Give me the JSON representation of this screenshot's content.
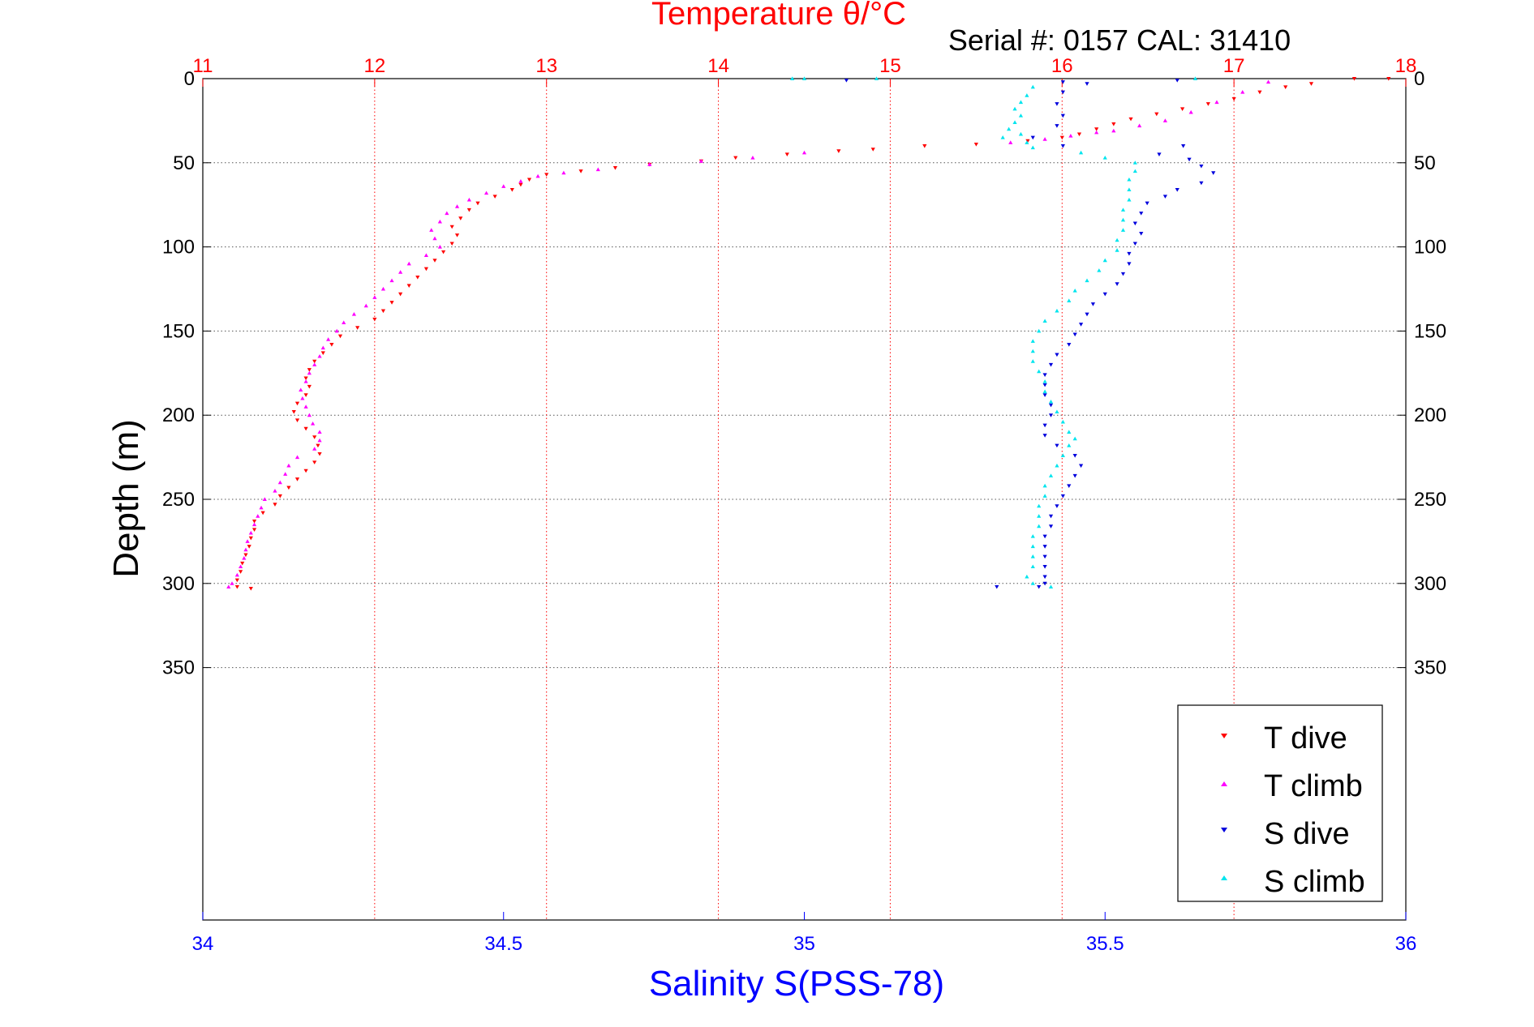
{
  "chart_data": {
    "type": "scatter",
    "title": "Temperature θ/°C",
    "subtitle": "Serial #: 0157  CAL: 31410",
    "xlabel": "Salinity S(PSS-78)",
    "ylabel": "Depth (m)",
    "x_top": {
      "label": "Temperature θ/°C",
      "lim": [
        11,
        18
      ],
      "ticks": [
        "11",
        "12",
        "13",
        "14",
        "15",
        "16",
        "17",
        "18"
      ]
    },
    "x_bottom": {
      "label": "Salinity S(PSS-78)",
      "lim": [
        34,
        36
      ],
      "ticks": [
        "34",
        "34.5",
        "35",
        "35.5",
        "36"
      ]
    },
    "ylim": [
      0,
      500
    ],
    "y_reversed": true,
    "y_ticks": [
      "0",
      "50",
      "100",
      "150",
      "200",
      "250",
      "300",
      "350"
    ],
    "grid": true,
    "legend_position": "bottom-right",
    "colors": {
      "t_dive": "#ff0000",
      "t_climb": "#ff00ff",
      "s_dive": "#0000dd",
      "s_climb": "#00e5ee",
      "grid": "#555555",
      "axis_t": "#ff0000",
      "axis_s": "#0000ff"
    },
    "series": [
      {
        "name": "T dive",
        "axis": "temperature",
        "marker": "triangle-down",
        "color": "#ff0000",
        "points": [
          [
            17.9,
            0
          ],
          [
            17.7,
            0
          ],
          [
            17.45,
            3
          ],
          [
            17.3,
            5
          ],
          [
            17.15,
            8
          ],
          [
            17.0,
            12
          ],
          [
            16.85,
            15
          ],
          [
            16.7,
            18
          ],
          [
            16.55,
            21
          ],
          [
            16.4,
            24
          ],
          [
            16.3,
            27
          ],
          [
            16.2,
            30
          ],
          [
            16.1,
            33
          ],
          [
            16.0,
            35
          ],
          [
            15.8,
            37
          ],
          [
            15.5,
            39
          ],
          [
            15.2,
            40
          ],
          [
            14.9,
            42
          ],
          [
            14.7,
            43
          ],
          [
            14.4,
            45
          ],
          [
            14.1,
            47
          ],
          [
            13.9,
            49
          ],
          [
            13.6,
            51
          ],
          [
            13.4,
            53
          ],
          [
            13.2,
            55
          ],
          [
            13.0,
            57
          ],
          [
            12.9,
            60
          ],
          [
            12.85,
            63
          ],
          [
            12.8,
            66
          ],
          [
            12.7,
            70
          ],
          [
            12.6,
            74
          ],
          [
            12.55,
            78
          ],
          [
            12.5,
            83
          ],
          [
            12.45,
            88
          ],
          [
            12.48,
            93
          ],
          [
            12.45,
            98
          ],
          [
            12.4,
            103
          ],
          [
            12.35,
            108
          ],
          [
            12.3,
            113
          ],
          [
            12.25,
            118
          ],
          [
            12.2,
            123
          ],
          [
            12.15,
            128
          ],
          [
            12.1,
            133
          ],
          [
            12.05,
            138
          ],
          [
            12.0,
            143
          ],
          [
            11.9,
            148
          ],
          [
            11.8,
            153
          ],
          [
            11.75,
            158
          ],
          [
            11.7,
            163
          ],
          [
            11.65,
            168
          ],
          [
            11.62,
            173
          ],
          [
            11.6,
            178
          ],
          [
            11.62,
            183
          ],
          [
            11.6,
            188
          ],
          [
            11.55,
            193
          ],
          [
            11.53,
            198
          ],
          [
            11.55,
            203
          ],
          [
            11.6,
            208
          ],
          [
            11.65,
            213
          ],
          [
            11.67,
            218
          ],
          [
            11.68,
            223
          ],
          [
            11.65,
            228
          ],
          [
            11.6,
            233
          ],
          [
            11.55,
            238
          ],
          [
            11.5,
            243
          ],
          [
            11.45,
            248
          ],
          [
            11.42,
            253
          ],
          [
            11.35,
            258
          ],
          [
            11.3,
            263
          ],
          [
            11.3,
            268
          ],
          [
            11.28,
            273
          ],
          [
            11.27,
            278
          ],
          [
            11.25,
            283
          ],
          [
            11.23,
            288
          ],
          [
            11.22,
            293
          ],
          [
            11.2,
            298
          ],
          [
            11.2,
            302
          ],
          [
            11.28,
            303
          ]
        ]
      },
      {
        "name": "T climb",
        "axis": "temperature",
        "marker": "triangle-up",
        "color": "#ff00ff",
        "points": [
          [
            17.2,
            2
          ],
          [
            17.05,
            8
          ],
          [
            16.9,
            14
          ],
          [
            16.75,
            20
          ],
          [
            16.6,
            25
          ],
          [
            16.45,
            28
          ],
          [
            16.3,
            31
          ],
          [
            16.2,
            32
          ],
          [
            16.05,
            34
          ],
          [
            15.9,
            36
          ],
          [
            15.7,
            38
          ],
          [
            14.5,
            44
          ],
          [
            14.2,
            47
          ],
          [
            13.9,
            49
          ],
          [
            13.6,
            51
          ],
          [
            13.3,
            54
          ],
          [
            13.1,
            56
          ],
          [
            12.95,
            58
          ],
          [
            12.85,
            61
          ],
          [
            12.75,
            64
          ],
          [
            12.65,
            68
          ],
          [
            12.55,
            72
          ],
          [
            12.48,
            76
          ],
          [
            12.42,
            80
          ],
          [
            12.38,
            85
          ],
          [
            12.33,
            90
          ],
          [
            12.35,
            95
          ],
          [
            12.38,
            100
          ],
          [
            12.3,
            105
          ],
          [
            12.2,
            110
          ],
          [
            12.15,
            115
          ],
          [
            12.1,
            120
          ],
          [
            12.05,
            125
          ],
          [
            12.0,
            130
          ],
          [
            11.95,
            135
          ],
          [
            11.88,
            140
          ],
          [
            11.82,
            145
          ],
          [
            11.78,
            150
          ],
          [
            11.73,
            155
          ],
          [
            11.7,
            160
          ],
          [
            11.68,
            165
          ],
          [
            11.65,
            170
          ],
          [
            11.62,
            175
          ],
          [
            11.6,
            180
          ],
          [
            11.57,
            185
          ],
          [
            11.58,
            190
          ],
          [
            11.6,
            195
          ],
          [
            11.62,
            200
          ],
          [
            11.64,
            205
          ],
          [
            11.68,
            210
          ],
          [
            11.68,
            215
          ],
          [
            11.65,
            220
          ],
          [
            11.55,
            225
          ],
          [
            11.5,
            230
          ],
          [
            11.48,
            235
          ],
          [
            11.45,
            240
          ],
          [
            11.42,
            245
          ],
          [
            11.36,
            250
          ],
          [
            11.34,
            255
          ],
          [
            11.32,
            260
          ],
          [
            11.3,
            265
          ],
          [
            11.28,
            270
          ],
          [
            11.26,
            275
          ],
          [
            11.25,
            280
          ],
          [
            11.24,
            285
          ],
          [
            11.22,
            290
          ],
          [
            11.2,
            295
          ],
          [
            11.17,
            300
          ],
          [
            11.15,
            302
          ]
        ]
      },
      {
        "name": "S dive",
        "axis": "salinity",
        "marker": "triangle-down",
        "color": "#0000dd",
        "points": [
          [
            35.07,
            1
          ],
          [
            35.43,
            2
          ],
          [
            35.47,
            3
          ],
          [
            35.62,
            1
          ],
          [
            35.43,
            8
          ],
          [
            35.42,
            15
          ],
          [
            35.43,
            22
          ],
          [
            35.42,
            28
          ],
          [
            35.38,
            35
          ],
          [
            35.43,
            40
          ],
          [
            35.63,
            40
          ],
          [
            35.59,
            45
          ],
          [
            35.64,
            48
          ],
          [
            35.66,
            52
          ],
          [
            35.68,
            56
          ],
          [
            35.66,
            62
          ],
          [
            35.62,
            66
          ],
          [
            35.6,
            70
          ],
          [
            35.57,
            74
          ],
          [
            35.56,
            80
          ],
          [
            35.55,
            86
          ],
          [
            35.56,
            92
          ],
          [
            35.55,
            98
          ],
          [
            35.54,
            104
          ],
          [
            35.54,
            110
          ],
          [
            35.53,
            116
          ],
          [
            35.52,
            122
          ],
          [
            35.5,
            128
          ],
          [
            35.48,
            134
          ],
          [
            35.47,
            140
          ],
          [
            35.46,
            146
          ],
          [
            35.45,
            152
          ],
          [
            35.44,
            158
          ],
          [
            35.42,
            164
          ],
          [
            35.41,
            170
          ],
          [
            35.4,
            176
          ],
          [
            35.4,
            182
          ],
          [
            35.4,
            188
          ],
          [
            35.41,
            194
          ],
          [
            35.41,
            200
          ],
          [
            35.4,
            206
          ],
          [
            35.4,
            212
          ],
          [
            35.42,
            218
          ],
          [
            35.45,
            224
          ],
          [
            35.46,
            230
          ],
          [
            35.45,
            236
          ],
          [
            35.44,
            242
          ],
          [
            35.43,
            248
          ],
          [
            35.42,
            254
          ],
          [
            35.41,
            260
          ],
          [
            35.41,
            266
          ],
          [
            35.4,
            272
          ],
          [
            35.4,
            278
          ],
          [
            35.4,
            284
          ],
          [
            35.4,
            290
          ],
          [
            35.4,
            296
          ],
          [
            35.4,
            300
          ],
          [
            35.39,
            302
          ],
          [
            35.32,
            302
          ]
        ]
      },
      {
        "name": "S climb",
        "axis": "salinity",
        "marker": "triangle-up",
        "color": "#00e5ee",
        "points": [
          [
            34.98,
            0
          ],
          [
            35.0,
            0
          ],
          [
            35.12,
            0
          ],
          [
            35.65,
            0
          ],
          [
            35.38,
            5
          ],
          [
            35.37,
            10
          ],
          [
            35.36,
            14
          ],
          [
            35.35,
            18
          ],
          [
            35.36,
            22
          ],
          [
            35.35,
            26
          ],
          [
            35.34,
            30
          ],
          [
            35.36,
            33
          ],
          [
            35.33,
            35
          ],
          [
            35.37,
            38
          ],
          [
            35.38,
            41
          ],
          [
            35.46,
            44
          ],
          [
            35.5,
            47
          ],
          [
            35.55,
            50
          ],
          [
            35.55,
            55
          ],
          [
            35.54,
            60
          ],
          [
            35.54,
            66
          ],
          [
            35.54,
            72
          ],
          [
            35.53,
            78
          ],
          [
            35.53,
            84
          ],
          [
            35.53,
            90
          ],
          [
            35.52,
            96
          ],
          [
            35.52,
            102
          ],
          [
            35.5,
            108
          ],
          [
            35.49,
            114
          ],
          [
            35.47,
            120
          ],
          [
            35.45,
            126
          ],
          [
            35.44,
            132
          ],
          [
            35.42,
            138
          ],
          [
            35.4,
            144
          ],
          [
            35.39,
            150
          ],
          [
            35.38,
            156
          ],
          [
            35.38,
            162
          ],
          [
            35.38,
            168
          ],
          [
            35.39,
            174
          ],
          [
            35.4,
            180
          ],
          [
            35.4,
            186
          ],
          [
            35.41,
            192
          ],
          [
            35.42,
            198
          ],
          [
            35.43,
            204
          ],
          [
            35.44,
            210
          ],
          [
            35.45,
            214
          ],
          [
            35.44,
            218
          ],
          [
            35.43,
            224
          ],
          [
            35.42,
            230
          ],
          [
            35.41,
            236
          ],
          [
            35.4,
            242
          ],
          [
            35.4,
            248
          ],
          [
            35.39,
            254
          ],
          [
            35.39,
            260
          ],
          [
            35.39,
            266
          ],
          [
            35.38,
            272
          ],
          [
            35.38,
            278
          ],
          [
            35.38,
            284
          ],
          [
            35.38,
            290
          ],
          [
            35.37,
            296
          ],
          [
            35.38,
            300
          ],
          [
            35.41,
            302
          ]
        ]
      }
    ]
  }
}
